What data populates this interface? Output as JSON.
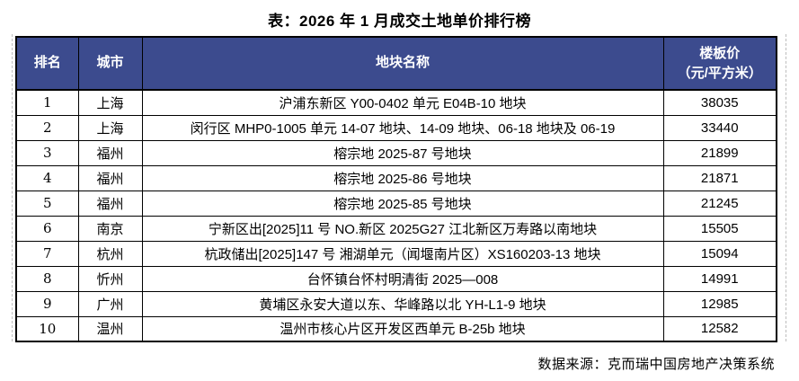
{
  "chart_data": {
    "type": "table",
    "title": "表：2026 年 1 月成交土地单价排行榜",
    "columns": [
      "排名",
      "城市",
      "地块名称",
      "楼板价（元/平方米）"
    ],
    "rows": [
      [
        "1",
        "上海",
        "沪浦东新区 Y00-0402 单元 E04B-10 地块",
        "38035"
      ],
      [
        "2",
        "上海",
        "闵行区 MHP0-1005 单元 14-07 地块、14-09 地块、06-18 地块及 06-19",
        "33440"
      ],
      [
        "3",
        "福州",
        "榕宗地 2025-87 号地块",
        "21899"
      ],
      [
        "4",
        "福州",
        "榕宗地 2025-86 号地块",
        "21871"
      ],
      [
        "5",
        "福州",
        "榕宗地 2025-85 号地块",
        "21245"
      ],
      [
        "6",
        "南京",
        "宁新区出[2025]11 号 NO.新区 2025G27 江北新区万寿路以南地块",
        "15505"
      ],
      [
        "7",
        "杭州",
        "杭政储出[2025]147 号 湘湖单元（闻堰南片区）XS160203-13 地块",
        "15094"
      ],
      [
        "8",
        "忻州",
        "台怀镇台怀村明清街 2025—008",
        "14991"
      ],
      [
        "9",
        "广州",
        "黄埔区永安大道以东、华峰路以北 YH-L1-9 地块",
        "12985"
      ],
      [
        "10",
        "温州",
        "温州市核心片区开发区西单元 B-25b 地块",
        "12582"
      ]
    ],
    "source_note": "数据来源：克而瑞中国房地产决策系统"
  },
  "header_display": {
    "rank": "排名",
    "city": "城市",
    "parcel": "地块名称",
    "price_line1": "楼板价",
    "price_line2": "（元/平方米）"
  },
  "footer": {
    "source": "数据来源：克而瑞中国房地产决策系统"
  },
  "colors": {
    "header_bg": "#3C4B8E",
    "header_text": "#FFFFFF",
    "border": "#000000",
    "body_bg": "#FFFFFF",
    "text": "#000000"
  }
}
